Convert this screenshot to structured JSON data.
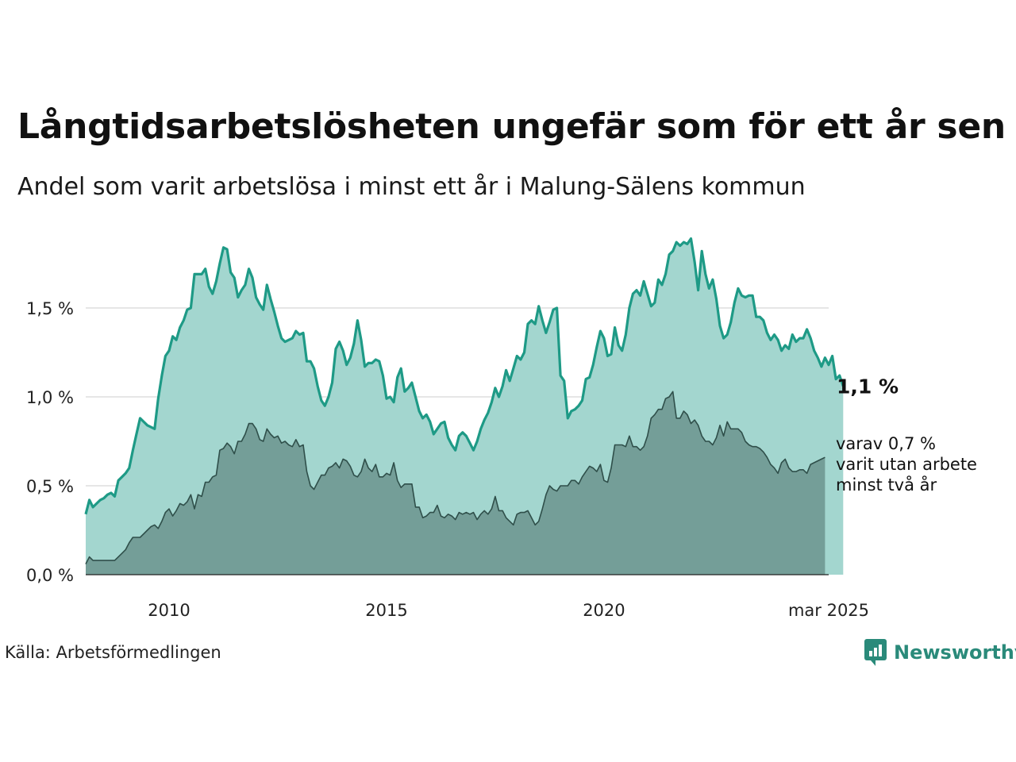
{
  "title": "Långtidsarbetslösheten ungefär som för ett år sen",
  "subtitle": "Andel som varit arbetslösa i minst ett år i Malung-Sälens kommun",
  "source": "Källa: Arbetsförmedlingen",
  "brand": "Newsworthy",
  "colors": {
    "upper_line": "#1e9a86",
    "upper_fill": "#a3d6cf",
    "lower_line": "#2f4f4a",
    "lower_fill": "#749e98",
    "grid": "#dddddd",
    "brand": "#2a8a7a"
  },
  "chart_data": {
    "type": "area",
    "x_start": "2008-02",
    "x_end": "2025-03",
    "x_step": "month",
    "x_ticks": [
      "2010",
      "2015",
      "2020",
      "mar 2025"
    ],
    "y_ticks": [
      "0,0 %",
      "0,5 %",
      "1,0 %",
      "1,5 %"
    ],
    "ylim": [
      0,
      2.0
    ],
    "grid": true,
    "series": [
      {
        "annotation": "1,1 %",
        "values": [
          0.34,
          0.42,
          0.38,
          0.4,
          0.42,
          0.43,
          0.45,
          0.46,
          0.44,
          0.53,
          0.55,
          0.57,
          0.6,
          0.7,
          0.79,
          0.88,
          0.86,
          0.84,
          0.83,
          0.82,
          0.99,
          1.12,
          1.23,
          1.26,
          1.34,
          1.32,
          1.39,
          1.43,
          1.49,
          1.5,
          1.69,
          1.69,
          1.69,
          1.72,
          1.62,
          1.58,
          1.65,
          1.75,
          1.84,
          1.83,
          1.7,
          1.67,
          1.56,
          1.6,
          1.63,
          1.72,
          1.67,
          1.56,
          1.52,
          1.49,
          1.63,
          1.55,
          1.48,
          1.4,
          1.33,
          1.31,
          1.32,
          1.33,
          1.37,
          1.35,
          1.36,
          1.2,
          1.2,
          1.16,
          1.06,
          0.98,
          0.95,
          1.0,
          1.08,
          1.27,
          1.31,
          1.26,
          1.18,
          1.22,
          1.3,
          1.43,
          1.32,
          1.17,
          1.19,
          1.19,
          1.21,
          1.2,
          1.12,
          0.99,
          1.0,
          0.97,
          1.11,
          1.16,
          1.03,
          1.05,
          1.08,
          1.0,
          0.92,
          0.88,
          0.9,
          0.86,
          0.79,
          0.82,
          0.85,
          0.86,
          0.77,
          0.73,
          0.7,
          0.78,
          0.8,
          0.78,
          0.74,
          0.7,
          0.75,
          0.82,
          0.87,
          0.91,
          0.97,
          1.05,
          1.0,
          1.06,
          1.15,
          1.09,
          1.16,
          1.23,
          1.21,
          1.25,
          1.41,
          1.43,
          1.41,
          1.51,
          1.43,
          1.36,
          1.42,
          1.49,
          1.5,
          1.12,
          1.09,
          0.88,
          0.92,
          0.93,
          0.95,
          0.98,
          1.1,
          1.11,
          1.18,
          1.28,
          1.37,
          1.33,
          1.23,
          1.24,
          1.39,
          1.29,
          1.26,
          1.35,
          1.5,
          1.58,
          1.6,
          1.57,
          1.65,
          1.58,
          1.51,
          1.53,
          1.66,
          1.63,
          1.69,
          1.8,
          1.82,
          1.87,
          1.85,
          1.87,
          1.86,
          1.89,
          1.76,
          1.6,
          1.82,
          1.69,
          1.61,
          1.66,
          1.55,
          1.4,
          1.33,
          1.35,
          1.42,
          1.53,
          1.61,
          1.57,
          1.56,
          1.57,
          1.57,
          1.45,
          1.45,
          1.43,
          1.36,
          1.32,
          1.35,
          1.32,
          1.26,
          1.29,
          1.27,
          1.35,
          1.31,
          1.33,
          1.33,
          1.38,
          1.33,
          1.26,
          1.22,
          1.17,
          1.22,
          1.18,
          1.23,
          1.1,
          1.12,
          1.06
        ]
      },
      {
        "annotation": "varav 0,7 % varit utan arbete minst två år",
        "values": [
          0.06,
          0.1,
          0.08,
          0.08,
          0.08,
          0.08,
          0.08,
          0.08,
          0.08,
          0.1,
          0.12,
          0.14,
          0.18,
          0.21,
          0.21,
          0.21,
          0.23,
          0.25,
          0.27,
          0.28,
          0.26,
          0.3,
          0.35,
          0.37,
          0.33,
          0.36,
          0.4,
          0.39,
          0.41,
          0.45,
          0.37,
          0.45,
          0.44,
          0.52,
          0.52,
          0.55,
          0.56,
          0.7,
          0.71,
          0.74,
          0.72,
          0.68,
          0.75,
          0.75,
          0.79,
          0.85,
          0.85,
          0.82,
          0.76,
          0.75,
          0.82,
          0.79,
          0.77,
          0.78,
          0.74,
          0.75,
          0.73,
          0.72,
          0.76,
          0.72,
          0.73,
          0.58,
          0.5,
          0.48,
          0.52,
          0.56,
          0.56,
          0.6,
          0.61,
          0.63,
          0.6,
          0.65,
          0.64,
          0.61,
          0.56,
          0.55,
          0.58,
          0.65,
          0.6,
          0.58,
          0.62,
          0.55,
          0.55,
          0.57,
          0.56,
          0.63,
          0.53,
          0.49,
          0.51,
          0.51,
          0.51,
          0.38,
          0.38,
          0.32,
          0.33,
          0.35,
          0.35,
          0.39,
          0.33,
          0.32,
          0.34,
          0.33,
          0.31,
          0.35,
          0.34,
          0.35,
          0.34,
          0.35,
          0.31,
          0.34,
          0.36,
          0.34,
          0.37,
          0.44,
          0.36,
          0.36,
          0.32,
          0.3,
          0.28,
          0.34,
          0.35,
          0.35,
          0.36,
          0.32,
          0.28,
          0.3,
          0.37,
          0.45,
          0.5,
          0.48,
          0.47,
          0.5,
          0.5,
          0.5,
          0.53,
          0.53,
          0.51,
          0.55,
          0.58,
          0.61,
          0.6,
          0.58,
          0.62,
          0.53,
          0.52,
          0.6,
          0.73,
          0.73,
          0.73,
          0.72,
          0.78,
          0.72,
          0.72,
          0.7,
          0.72,
          0.78,
          0.88,
          0.9,
          0.93,
          0.93,
          0.99,
          1.0,
          1.03,
          0.88,
          0.88,
          0.92,
          0.9,
          0.85,
          0.87,
          0.84,
          0.78,
          0.75,
          0.75,
          0.73,
          0.77,
          0.84,
          0.78,
          0.86,
          0.82,
          0.82,
          0.82,
          0.8,
          0.75,
          0.73,
          0.72,
          0.72,
          0.71,
          0.69,
          0.66,
          0.62,
          0.6,
          0.57,
          0.63,
          0.65,
          0.6,
          0.58,
          0.58,
          0.59,
          0.59,
          0.57,
          0.62,
          0.63,
          0.64,
          0.65,
          0.66
        ]
      }
    ]
  }
}
